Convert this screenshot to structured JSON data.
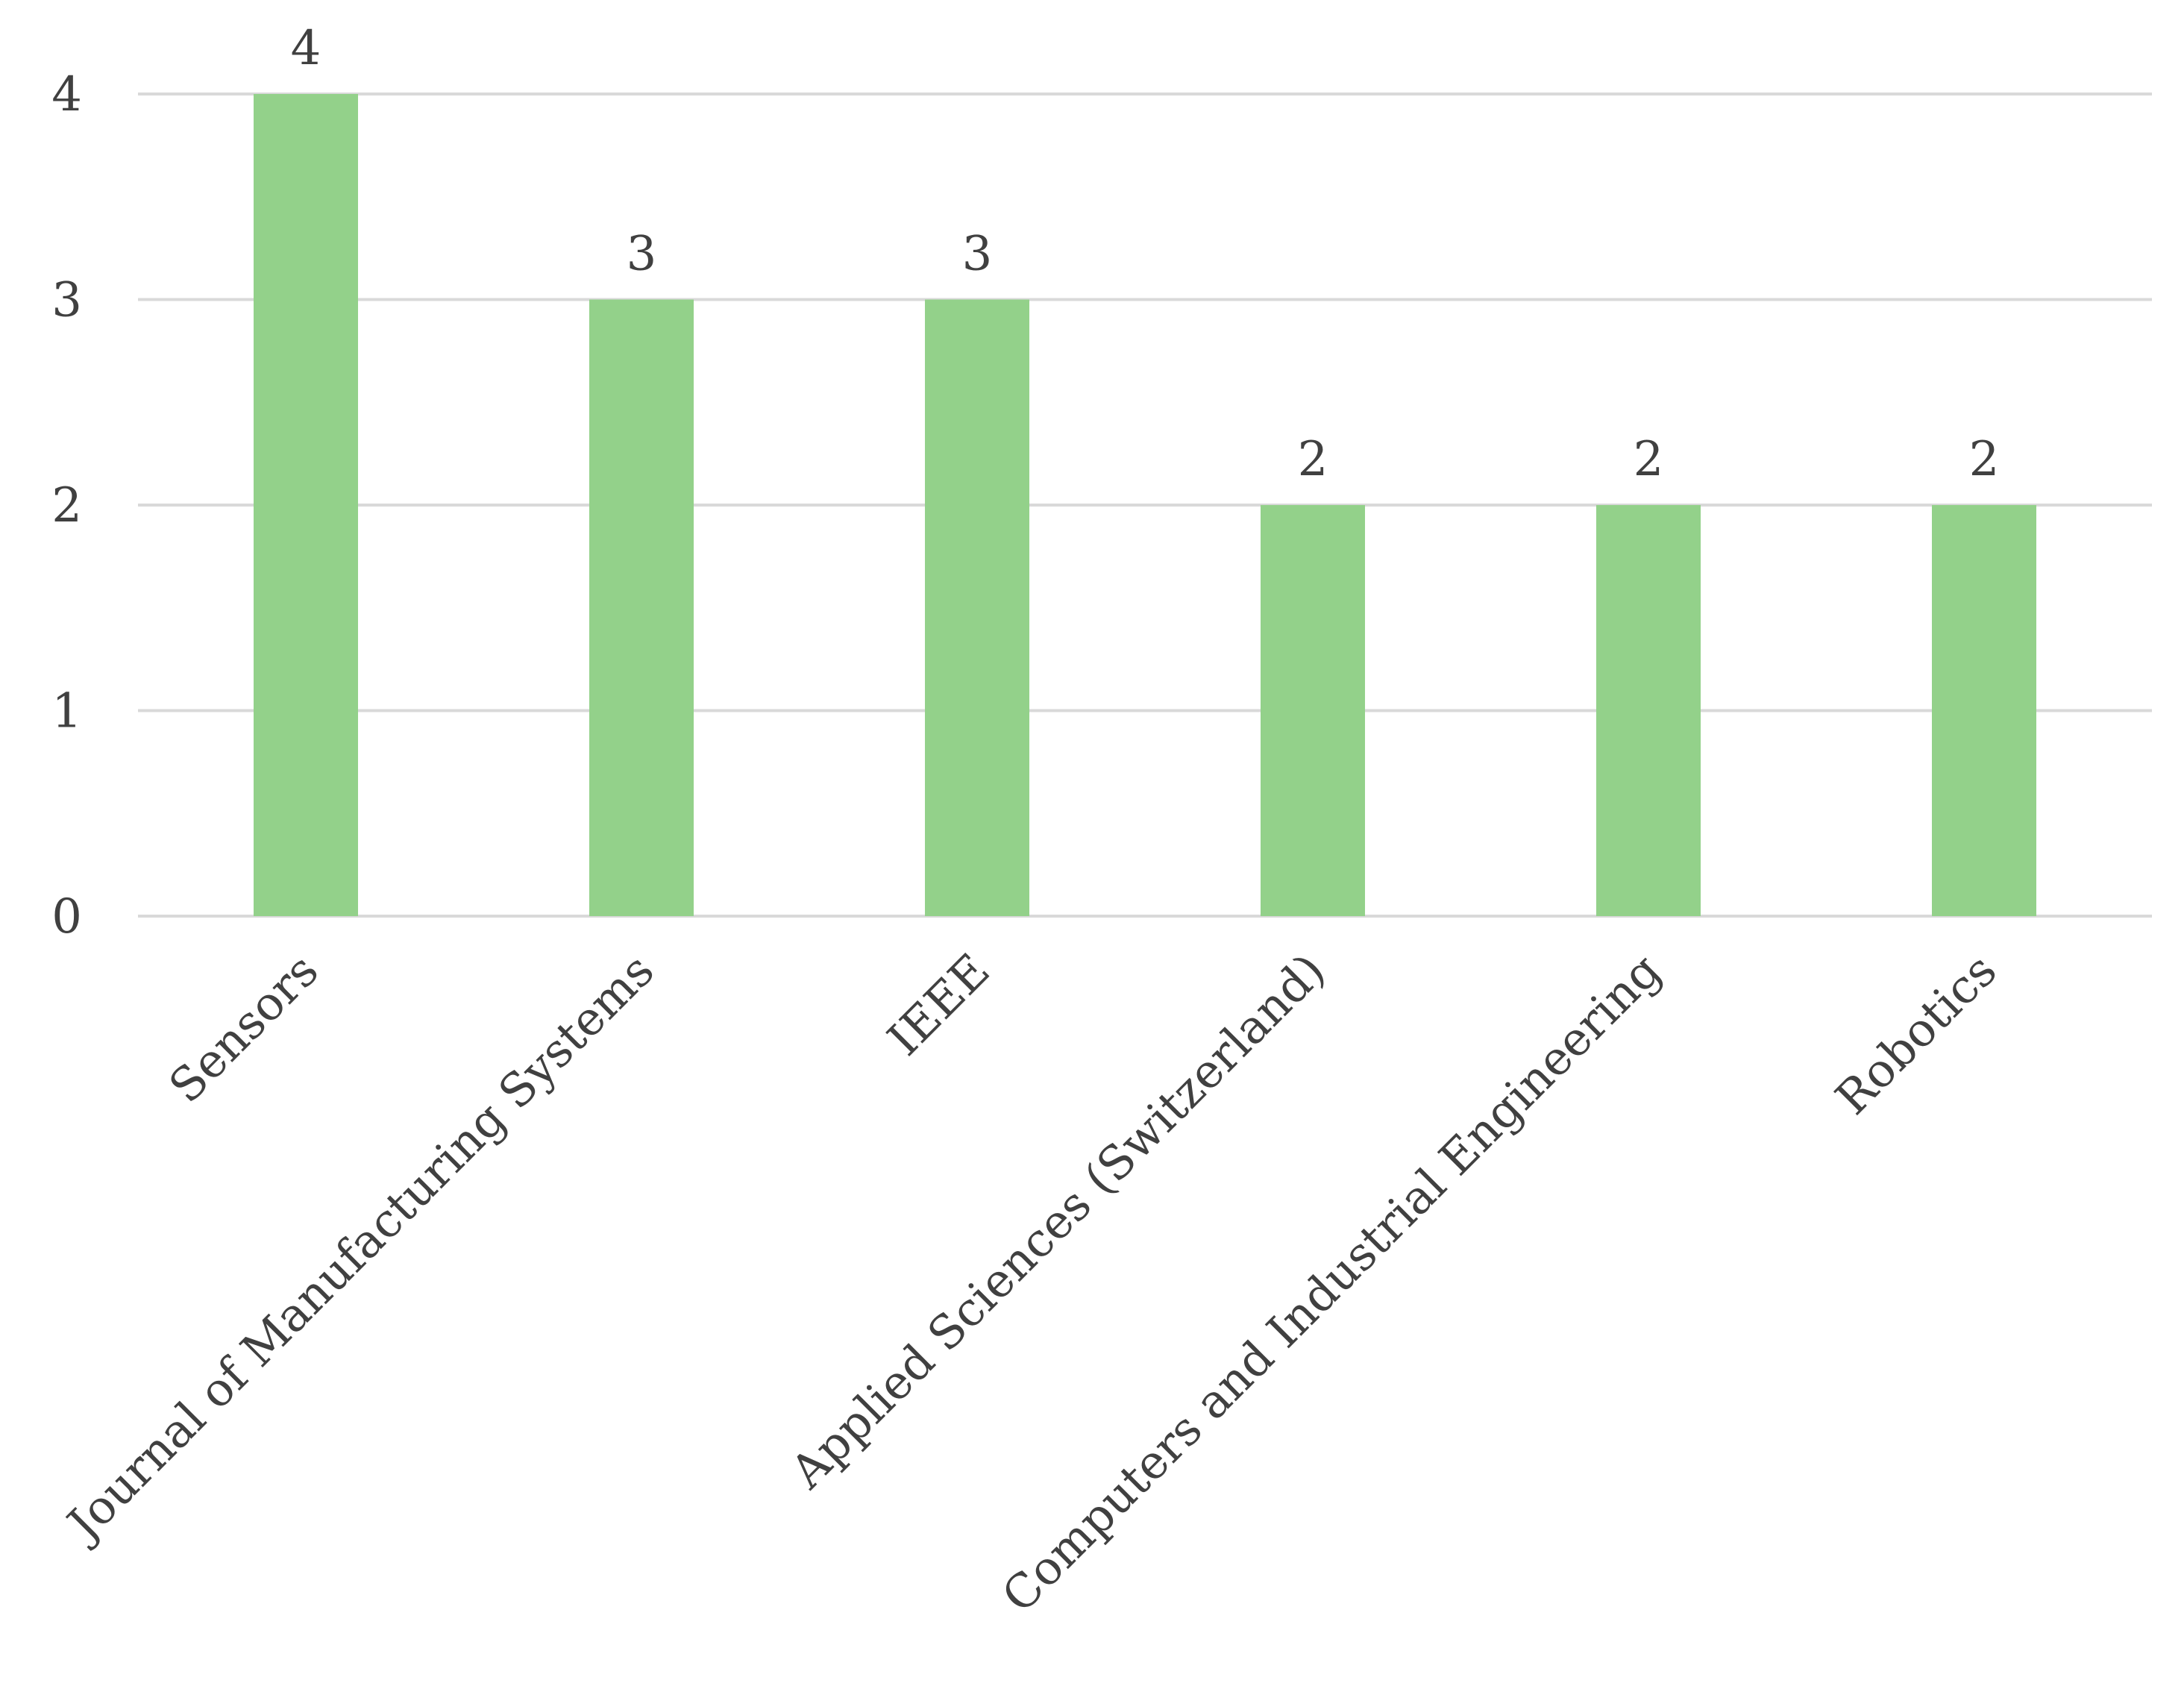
{
  "chart_data": {
    "type": "bar",
    "title": "",
    "xlabel": "",
    "ylabel": "",
    "categories": [
      "Sensors",
      "Journal of Manufacturing Systems",
      "IEEE",
      "Applied Sciences (Switzerland)",
      "Computers and Industrial Engineering",
      "Robotics"
    ],
    "values": [
      4,
      3,
      3,
      2,
      2,
      2
    ],
    "data_labels": [
      "4",
      "3",
      "3",
      "2",
      "2",
      "2"
    ],
    "ylim": [
      0,
      4
    ],
    "yticks": [
      "0",
      "1",
      "2",
      "3",
      "4"
    ],
    "grid": true,
    "legend": "none",
    "colors": {
      "bar": "#93d18a",
      "grid": "#d9d9d9",
      "text": "#404040"
    }
  }
}
